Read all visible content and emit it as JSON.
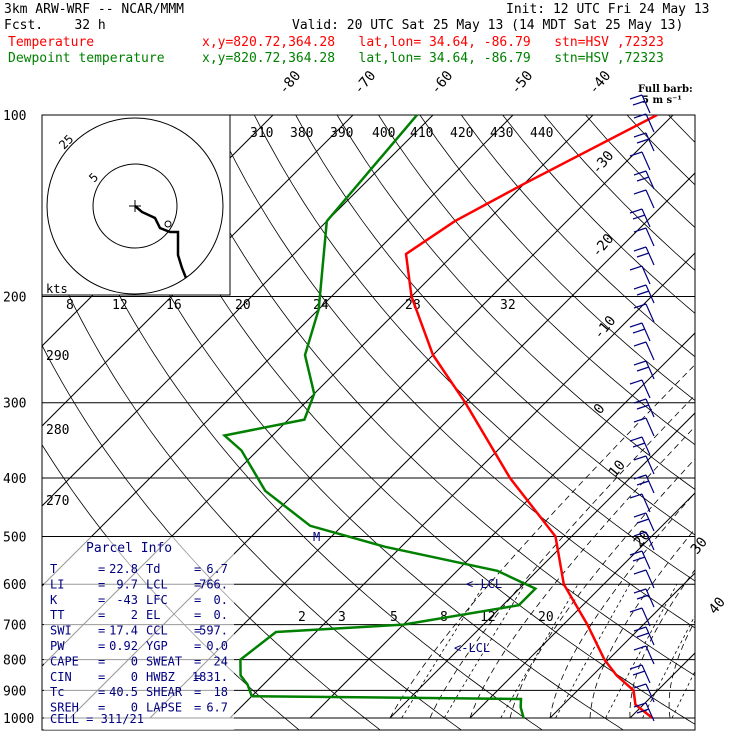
{
  "header": {
    "model": "3km ARW-WRF -- NCAR/MMM",
    "init": "Init: 12 UTC Fri 24 May 13",
    "fcst": "Fcst.    32 h",
    "valid": "Valid: 20 UTC Sat 25 May 13 (14 MDT Sat 25 May 13)",
    "temp_label": "Temperature",
    "temp_loc": "x,y=820.72,364.28   lat,lon= 34.64, -86.79   stn=HSV ,72323",
    "dew_label": "Dewpoint temperature",
    "dew_loc": "x,y=820.72,364.28   lat,lon= 34.64, -86.79   stn=HSV ,72323",
    "full_barb": "Full barb:",
    "full_barb_units": "5 m s⁻¹"
  },
  "colors": {
    "temperature": "#ff0000",
    "dewpoint": "#008000",
    "info": "#000080",
    "grid": "#000000"
  },
  "chart_data": {
    "type": "line",
    "title": "",
    "pressure_levels": [
      "100",
      "200",
      "300",
      "400",
      "500",
      "600",
      "700",
      "800",
      "900",
      "1000"
    ],
    "temperature_ticks": [
      "-80",
      "-70",
      "-60",
      "-50",
      "-40",
      "-30",
      "-20",
      "-10",
      "0",
      "10",
      "20",
      "30",
      "40"
    ],
    "theta_labels": [
      "310",
      "380",
      "390",
      "400",
      "410",
      "420",
      "430",
      "440"
    ],
    "mixing_ratio_top": [
      "8",
      "12",
      "16",
      "20",
      "24",
      "28",
      "32"
    ],
    "mixing_ratio_bottom": [
      "2",
      "3",
      "5",
      "8",
      "12",
      "20"
    ],
    "theta_side_labels": [
      "290",
      "280",
      "270"
    ],
    "series": [
      {
        "name": "Temperature",
        "points": [
          [
            1000,
            22.8
          ],
          [
            950,
            19
          ],
          [
            900,
            17
          ],
          [
            850,
            13
          ],
          [
            800,
            9.5
          ],
          [
            700,
            3
          ],
          [
            600,
            -5
          ],
          [
            500,
            -12
          ],
          [
            400,
            -25
          ],
          [
            300,
            -40
          ],
          [
            250,
            -50
          ],
          [
            200,
            -60
          ],
          [
            170,
            -66
          ],
          [
            150,
            -64
          ],
          [
            130,
            -60
          ],
          [
            100,
            -52
          ]
        ]
      },
      {
        "name": "Dewpoint temperature",
        "points": [
          [
            1000,
            6.7
          ],
          [
            960,
            5
          ],
          [
            930,
            4
          ],
          [
            920,
            -30
          ],
          [
            880,
            -32
          ],
          [
            850,
            -34
          ],
          [
            800,
            -36
          ],
          [
            720,
            -35
          ],
          [
            700,
            -20
          ],
          [
            650,
            -8
          ],
          [
            610,
            -8
          ],
          [
            570,
            -15
          ],
          [
            520,
            -32
          ],
          [
            480,
            -44
          ],
          [
            420,
            -54
          ],
          [
            360,
            -62
          ],
          [
            340,
            -66
          ],
          [
            320,
            -58
          ],
          [
            290,
            -60
          ],
          [
            250,
            -66
          ],
          [
            210,
            -70
          ],
          [
            150,
            -80
          ],
          [
            100,
            -82
          ]
        ]
      }
    ],
    "hodograph": {
      "rings": [
        "25",
        "5"
      ],
      "units": "kts"
    },
    "wind_barbs": {
      "count": 33
    }
  },
  "parcel": {
    "title": "Parcel Info",
    "rows": [
      {
        "k1": "T",
        "v1": "22.8",
        "k2": "Td",
        "v2": "6.7"
      },
      {
        "k1": "LI",
        "v1": "9.7",
        "k2": "LCL",
        "v2": "766."
      },
      {
        "k1": "K",
        "v1": "-43",
        "k2": "LFC",
        "v2": "0."
      },
      {
        "k1": "TT",
        "v1": "2",
        "k2": "EL",
        "v2": "0."
      },
      {
        "k1": "SWI",
        "v1": "17.4",
        "k2": "CCL",
        "v2": "597."
      },
      {
        "k1": "PW",
        "v1": "0.92",
        "k2": "YGP",
        "v2": "0.0"
      },
      {
        "k1": "CAPE",
        "v1": "0",
        "k2": "SWEAT",
        "v2": "24"
      },
      {
        "k1": "CIN",
        "v1": "0",
        "k2": "HWBZ",
        "v2": "1831."
      },
      {
        "k1": "Tc",
        "v1": "40.5",
        "k2": "SHEAR",
        "v2": "18"
      },
      {
        "k1": "SREH",
        "v1": "0",
        "k2": "LAPSE",
        "v2": "6.7"
      }
    ],
    "cell": "CELL = 311/21"
  },
  "annotations": {
    "lcl_upper": "<-LCL",
    "lcl_lower": "<-LCL",
    "m_mark": "M"
  }
}
